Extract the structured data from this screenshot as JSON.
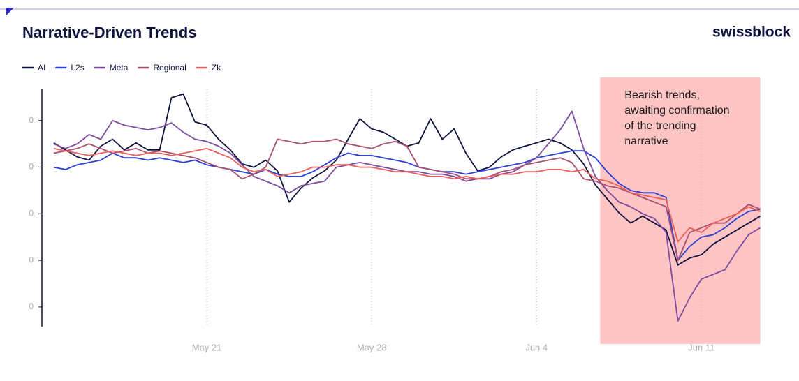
{
  "chart_data": {
    "type": "line",
    "title": "Narrative-Driven Trends",
    "brand": "swissblock",
    "x": [
      14.5,
      15,
      15.5,
      16,
      16.5,
      17,
      17.5,
      18,
      18.5,
      19,
      19.5,
      20,
      20.5,
      21,
      21.5,
      22,
      22.5,
      23,
      23.5,
      24,
      24.5,
      25,
      25.5,
      26,
      26.5,
      27,
      27.5,
      28,
      28.5,
      29,
      29.5,
      30,
      30.5,
      31,
      31.5,
      32,
      32.5,
      33,
      33.5,
      34,
      34.5,
      35,
      35.5,
      36,
      36.5,
      37,
      37.5,
      38,
      38.5,
      39,
      39.5,
      40,
      40.5,
      41,
      41.5,
      42,
      42.5,
      43,
      43.5,
      44,
      44.5
    ],
    "series": [
      {
        "name": "AI",
        "color": "#10123f",
        "values": [
          3.52,
          3.37,
          3.22,
          3.15,
          3.45,
          3.6,
          3.37,
          3.52,
          3.37,
          3.37,
          4.49,
          4.57,
          3.97,
          3.9,
          3.6,
          3.37,
          3.07,
          3.0,
          3.15,
          2.92,
          2.25,
          2.55,
          2.77,
          2.92,
          3.15,
          3.6,
          4.04,
          3.82,
          3.75,
          3.6,
          3.45,
          3.52,
          4.04,
          3.6,
          3.82,
          3.3,
          2.92,
          3.0,
          3.22,
          3.37,
          3.45,
          3.52,
          3.6,
          3.52,
          3.37,
          3.07,
          2.62,
          2.32,
          2.02,
          1.8,
          1.95,
          1.8,
          1.65,
          0.9,
          1.05,
          1.12,
          1.35,
          1.5,
          1.65,
          1.8,
          1.95
        ]
      },
      {
        "name": "L2s",
        "color": "#2b3fd4",
        "values": [
          3.0,
          2.95,
          3.05,
          3.1,
          3.15,
          3.3,
          3.2,
          3.2,
          3.15,
          3.2,
          3.15,
          3.1,
          3.15,
          3.05,
          3.0,
          2.95,
          2.9,
          2.85,
          2.95,
          2.85,
          2.8,
          2.8,
          2.9,
          3.05,
          3.2,
          3.3,
          3.25,
          3.25,
          3.2,
          3.15,
          3.1,
          3.0,
          2.95,
          2.9,
          2.9,
          2.85,
          2.9,
          2.95,
          3.0,
          3.05,
          3.1,
          3.2,
          3.25,
          3.3,
          3.35,
          3.35,
          3.2,
          2.9,
          2.65,
          2.5,
          2.45,
          2.45,
          2.35,
          1.0,
          1.3,
          1.5,
          1.55,
          1.7,
          1.9,
          2.05,
          2.1
        ]
      },
      {
        "name": "Meta",
        "color": "#7d4b9f",
        "values": [
          3.5,
          3.4,
          3.5,
          3.7,
          3.6,
          4.0,
          3.9,
          3.85,
          3.8,
          3.85,
          3.95,
          3.75,
          3.6,
          3.55,
          3.45,
          3.3,
          3.05,
          2.8,
          2.7,
          2.6,
          2.45,
          2.6,
          2.65,
          2.7,
          3.0,
          3.05,
          3.1,
          3.05,
          3.0,
          2.95,
          2.9,
          2.9,
          2.85,
          2.85,
          2.8,
          2.7,
          2.75,
          2.75,
          2.85,
          2.9,
          3.05,
          3.2,
          3.5,
          3.8,
          4.2,
          3.4,
          2.8,
          2.5,
          2.25,
          2.15,
          2.0,
          1.9,
          1.6,
          -0.3,
          0.2,
          0.6,
          0.7,
          0.8,
          1.2,
          1.55,
          1.7
        ]
      },
      {
        "name": "Regional",
        "color": "#a8506f",
        "values": [
          3.3,
          3.35,
          3.4,
          3.5,
          3.4,
          3.3,
          3.35,
          3.4,
          3.3,
          3.35,
          3.3,
          3.25,
          3.2,
          3.1,
          3.0,
          2.95,
          2.75,
          2.85,
          3.0,
          3.6,
          3.55,
          3.5,
          3.55,
          3.55,
          3.6,
          3.5,
          3.45,
          3.4,
          3.5,
          3.55,
          3.45,
          3.0,
          2.95,
          2.9,
          2.85,
          2.75,
          2.75,
          2.8,
          2.9,
          2.95,
          3.05,
          3.1,
          3.15,
          3.2,
          3.1,
          2.75,
          2.7,
          2.6,
          2.55,
          2.45,
          2.35,
          2.25,
          2.15,
          1.0,
          1.6,
          1.7,
          1.8,
          1.8,
          2.0,
          2.2,
          2.1
        ]
      },
      {
        "name": "Zk",
        "color": "#ec5f58",
        "values": [
          3.4,
          3.35,
          3.3,
          3.25,
          3.3,
          3.35,
          3.3,
          3.25,
          3.3,
          3.3,
          3.25,
          3.3,
          3.35,
          3.4,
          3.3,
          3.2,
          3.0,
          2.9,
          2.95,
          2.8,
          2.85,
          2.9,
          3.0,
          3.0,
          3.05,
          3.05,
          3.0,
          3.0,
          2.95,
          2.9,
          2.9,
          2.85,
          2.8,
          2.8,
          2.75,
          2.8,
          2.75,
          2.8,
          2.85,
          2.85,
          2.9,
          2.9,
          2.95,
          2.95,
          2.9,
          2.95,
          2.75,
          2.7,
          2.6,
          2.45,
          2.4,
          2.35,
          2.3,
          1.4,
          1.7,
          1.6,
          1.8,
          1.9,
          2.0,
          2.15,
          2.05
        ]
      }
    ],
    "xlim": [
      14,
      44.6
    ],
    "xticks": [
      {
        "value": 21,
        "label": "May 21"
      },
      {
        "value": 28,
        "label": "May 28"
      },
      {
        "value": 35,
        "label": "Jun 4"
      },
      {
        "value": 42,
        "label": "Jun 11"
      }
    ],
    "ylim": [
      -0.42,
      4.67
    ],
    "yticks": [
      {
        "value": 4,
        "label": "0"
      },
      {
        "value": 3,
        "label": "0"
      },
      {
        "value": 2,
        "label": "0"
      },
      {
        "value": 1,
        "label": "0"
      },
      0
    ],
    "grid": "x",
    "legend": "top-left",
    "annotation": {
      "lines": [
        "Bearish trends,",
        "awaiting confirmation",
        "of the trending",
        "narrative"
      ],
      "x_range": [
        37.7,
        44.5
      ],
      "color": "#ffc4c4"
    }
  }
}
